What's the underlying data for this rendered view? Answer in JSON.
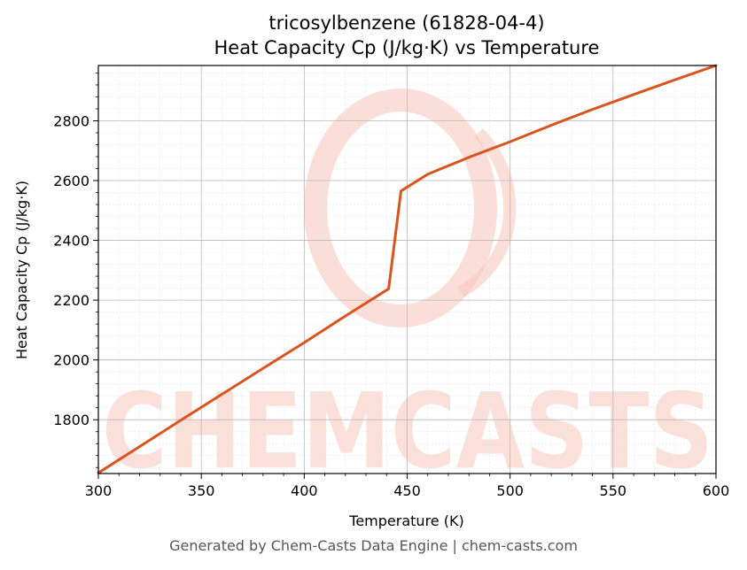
{
  "colors": {
    "line": "#d9541e",
    "watermark": "#f9c8bd",
    "grid_major": "#b8b8b8",
    "grid_minor": "#e6e6e6",
    "footer": "#555555"
  },
  "footer": "Generated by Chem-Casts Data Engine | chem-casts.com",
  "watermark": {
    "text": "CHEMCASTS",
    "icon": "swirl-c-logo"
  },
  "chart_data": {
    "type": "line",
    "title": "tricosylbenzene (61828-04-4)",
    "subtitle": "Heat Capacity Cp (J/kg·K) vs Temperature",
    "xlabel": "Temperature (K)",
    "ylabel": "Heat Capacity Cp (J/kg·K)",
    "xlim": [
      300,
      600
    ],
    "ylim": [
      1620,
      2985
    ],
    "xticks": [
      300,
      350,
      400,
      450,
      500,
      550,
      600
    ],
    "yticks": [
      1800,
      2000,
      2200,
      2400,
      2600,
      2800
    ],
    "grid": true,
    "legend": "none",
    "series": [
      {
        "x": [
          300,
          320,
          340,
          360,
          380,
          400,
          420,
          441,
          447,
          460,
          480,
          500,
          520,
          540,
          560,
          580,
          600
        ],
        "y": [
          1622,
          1710,
          1798,
          1885,
          1972,
          2058,
          2147,
          2238,
          2565,
          2621,
          2678,
          2730,
          2785,
          2838,
          2888,
          2937,
          2985
        ]
      }
    ]
  }
}
